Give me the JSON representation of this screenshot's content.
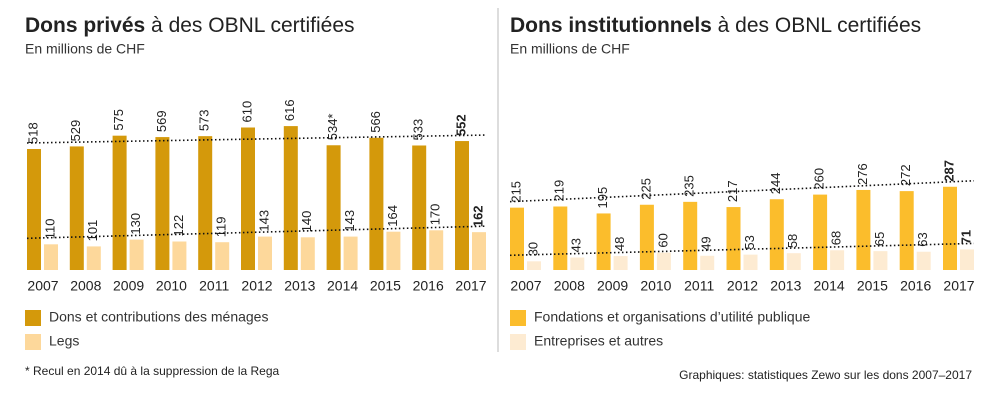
{
  "chart_data": [
    {
      "type": "bar",
      "title": {
        "bold": "Dons privés",
        "rest": " à des OBNL certifiées"
      },
      "subtitle": "En millions de CHF",
      "categories": [
        "2007",
        "2008",
        "2009",
        "2010",
        "2011",
        "2012",
        "2013",
        "2014",
        "2015",
        "2016",
        "2017"
      ],
      "series": [
        {
          "name": "Dons et contributions des ménages",
          "color": "#d4990b",
          "values": [
            518,
            529,
            575,
            569,
            573,
            610,
            616,
            534,
            566,
            533,
            552
          ],
          "value_labels": [
            "518",
            "529",
            "575",
            "569",
            "573",
            "610",
            "616",
            "534*",
            "566",
            "533",
            "552"
          ]
        },
        {
          "name": "Legs",
          "color": "#fdd89b",
          "values": [
            110,
            101,
            130,
            122,
            119,
            143,
            140,
            143,
            164,
            170,
            162
          ]
        }
      ]
    },
    {
      "type": "bar",
      "title": {
        "bold": "Dons institutionnels",
        "rest": " à des OBNL certifiées"
      },
      "subtitle": "En millions de CHF",
      "categories": [
        "2007",
        "2008",
        "2009",
        "2010",
        "2011",
        "2012",
        "2013",
        "2014",
        "2015",
        "2016",
        "2017"
      ],
      "series": [
        {
          "name": "Fondations et organisations d’utilité publique",
          "color": "#fbbd2c",
          "values": [
            215,
            219,
            195,
            225,
            235,
            217,
            244,
            260,
            276,
            272,
            287
          ]
        },
        {
          "name": "Entreprises et autres",
          "color": "#fdebd2",
          "values": [
            30,
            43,
            48,
            60,
            49,
            53,
            58,
            68,
            65,
            63,
            71
          ]
        }
      ]
    }
  ],
  "footnote": "* Recul en 2014 dû à la suppression de la Rega",
  "source": "Graphiques: statistiques Zewo sur les dons 2007–2017"
}
